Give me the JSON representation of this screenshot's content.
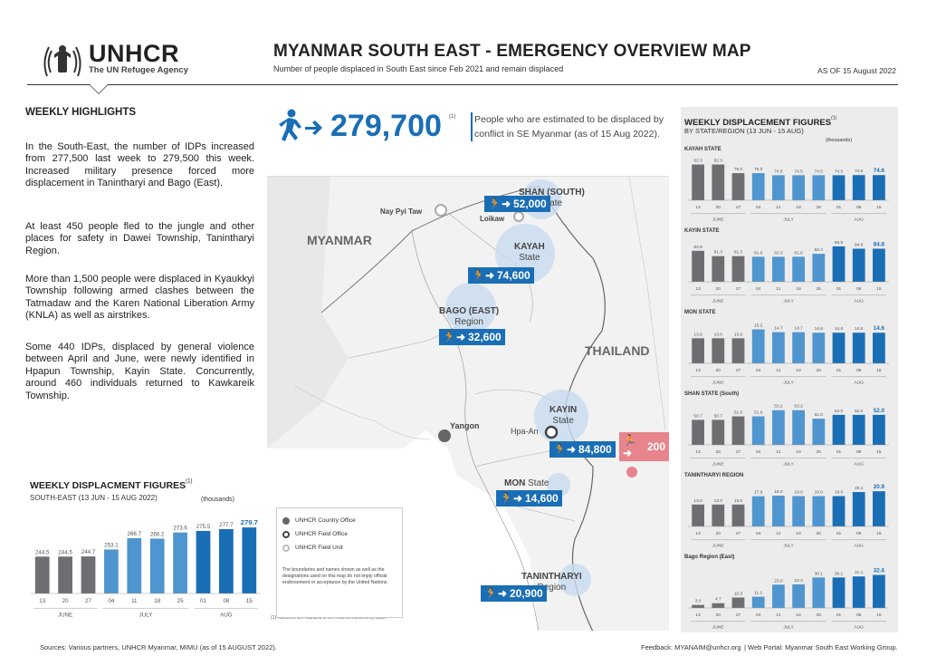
{
  "header": {
    "org_name": "UNHCR",
    "org_sub": "The UN Refugee Agency",
    "title": "MYANMAR SOUTH EAST - EMERGENCY OVERVIEW MAP",
    "subtitle": "Number of people displaced in South East since Feb 2021 and remain displaced",
    "as_of": "AS OF 15 August 2022"
  },
  "highlights": {
    "title": "WEEKLY HIGHLIGHTS",
    "paragraphs": [
      "In the South-East, the number of IDPs increased from 277,500 last week to 279,500 this week. Increased military presence forced more displacement in Tanintharyi and Bago (East).",
      "At least 450 people fled to the jungle and other places for safety in Dawei Township, Tanintharyi Region.",
      "More than 1,500 people were displaced in Kyaukkyi Township following armed clashes between the Tatmadaw and the Karen National Liberation Army (KNLA) as well as airstrikes.",
      "Some 440 IDPs, displaced by general violence between April and June, were newly identified in Hpapun Township, Kayin State. Concurrently, around 460 individuals returned to Kawkareik Township."
    ]
  },
  "total": {
    "value": "279,700",
    "sup": "(1)",
    "description": "People who are estimated to be displaced by conflict in SE Myanmar (as of 15 Aug 2022)."
  },
  "map": {
    "countries": {
      "myanmar": "MYANMAR",
      "thailand": "THAILAND"
    },
    "cities": {
      "nay_pyi_taw": "Nay Pyi Taw",
      "loikaw": "Loikaw",
      "yangon": "Yangon",
      "hpa_an": "Hpa-An"
    },
    "states": [
      {
        "name": "SHAN (SOUTH)",
        "type": "State",
        "value": "52,000"
      },
      {
        "name": "KAYAH",
        "type": "State",
        "value": "74,600"
      },
      {
        "name": "BAGO (EAST)",
        "type": "Region",
        "value": "32,600"
      },
      {
        "name": "KAYIN",
        "type": "State",
        "value": "84,800"
      },
      {
        "name": "MON",
        "type": "State",
        "value": "14,600"
      },
      {
        "name": "TANINTHARYI",
        "type": "Region",
        "value": "20,900"
      }
    ],
    "thailand_value": "200",
    "legend": [
      "UNHCR Country Office",
      "UNHCR Field Office",
      "UNHCR Field Unit"
    ],
    "disclaimer": "The boundaries and names shown as well as the designations used on this map do not imply official endorsement or acceptance by the United Nations.",
    "footnote": "(1) Numbers are rounded to the nearest hundred by state."
  },
  "chart_data": [
    {
      "type": "bar",
      "title": "WEEKLY DISPLACMENT FIGURES",
      "title_sup": "(1)",
      "subtitle": "SOUTH-EAST (13 JUN - 15 AUG 2022)",
      "unit": "(thousands)",
      "categories": [
        "13",
        "20",
        "27",
        "04",
        "11",
        "18",
        "25",
        "01",
        "08",
        "15"
      ],
      "months": [
        "JUNE",
        "JULY",
        "AUG"
      ],
      "values": [
        244.5,
        244.5,
        244.7,
        253.1,
        266.7,
        266.2,
        273.6,
        275.5,
        277.7,
        279.7
      ]
    },
    {
      "type": "bar",
      "title": "WEEKLY DISPLACEMENT FIGURES",
      "title_sup": "(1)",
      "subtitle": "BY STATE/REGION (13 JUN - 15 AUG)",
      "unit": "(thousands)",
      "categories": [
        "13",
        "20",
        "27",
        "04",
        "11",
        "18",
        "25",
        "01",
        "08",
        "15"
      ],
      "months": [
        "JUNE",
        "JULY",
        "AUG"
      ],
      "panels": [
        {
          "name": "KAYAH STATE",
          "values": [
            82.3,
            82.3,
            76.0,
            76.0,
            74.5,
            74.5,
            74.5,
            74.5,
            74.6,
            74.6
          ]
        },
        {
          "name": "KAYIN STATE",
          "values": [
            83.8,
            81.3,
            81.3,
            81.0,
            81.0,
            81.0,
            82.4,
            85.9,
            84.8,
            84.8
          ]
        },
        {
          "name": "MON STATE",
          "values": [
            13.6,
            13.6,
            13.6,
            15.2,
            14.7,
            14.7,
            14.6,
            14.6,
            14.6,
            14.6
          ]
        },
        {
          "name": "SHAN STATE (South)",
          "values": [
            50.7,
            50.7,
            51.6,
            51.6,
            53.2,
            53.2,
            51.0,
            52.0,
            52.0,
            52.0
          ]
        },
        {
          "name": "TANINTHARYI REGION",
          "values": [
            13.0,
            13.0,
            13.0,
            17.9,
            18.3,
            18.0,
            18.0,
            18.0,
            20.4,
            20.9
          ]
        },
        {
          "name": "Bago Region (East)",
          "values": [
            3.0,
            4.7,
            10.3,
            11.1,
            23.0,
            23.3,
            30.1,
            30.1,
            31.1,
            32.6
          ]
        }
      ]
    }
  ],
  "footer": {
    "sources": "Sources: Various partners, UNHCR Myanmar, MIMU (as of 15 AUGUST 2022).",
    "feedback": "Feedback: MYANAIM@unhcr.org",
    "portal": "| Web Portal: Myanmar South East Working Group."
  }
}
